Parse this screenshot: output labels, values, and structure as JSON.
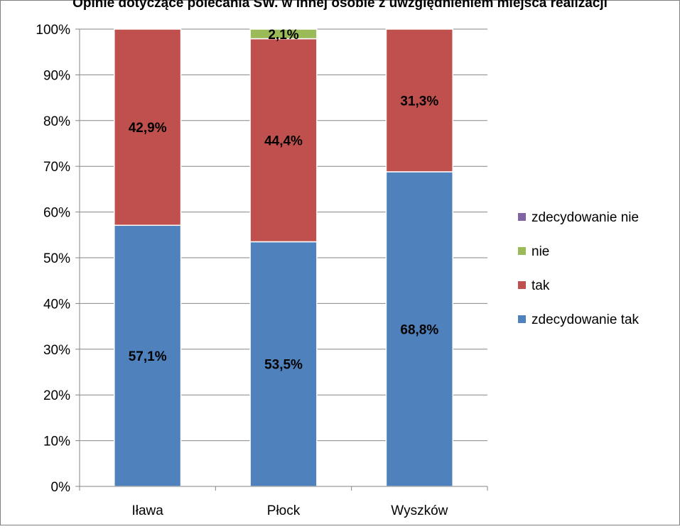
{
  "chart_data": {
    "type": "bar",
    "stacked": true,
    "percent_stacked": true,
    "title": "Opinie dotyczące polecania SW. w innej osobie z uwzględnieniem miejsca realizacji",
    "categories": [
      "Iława",
      "Płock",
      "Wyszków"
    ],
    "series": [
      {
        "name": "zdecydowanie tak",
        "color": "#4F81BD",
        "values": [
          57.1,
          53.5,
          68.8
        ],
        "labels": [
          "57,1%",
          "53,5%",
          "68,8%"
        ]
      },
      {
        "name": "tak",
        "color": "#C0504D",
        "values": [
          42.9,
          44.4,
          31.3
        ],
        "labels": [
          "42,9%",
          "44,4%",
          "31,3%"
        ]
      },
      {
        "name": "nie",
        "color": "#9BBB59",
        "values": [
          0,
          2.1,
          0
        ],
        "labels": [
          "",
          "2,1%",
          ""
        ]
      },
      {
        "name": "zdecydowanie nie",
        "color": "#8064A2",
        "values": [
          0,
          0,
          0
        ],
        "labels": [
          "",
          "",
          ""
        ]
      }
    ],
    "yticks": [
      "0%",
      "10%",
      "20%",
      "30%",
      "40%",
      "50%",
      "60%",
      "70%",
      "80%",
      "90%",
      "100%"
    ],
    "ylim": [
      0,
      100
    ],
    "grid": true,
    "legend_position": "right",
    "legend_order": [
      "zdecydowanie nie",
      "nie",
      "tak",
      "zdecydowanie tak"
    ]
  }
}
